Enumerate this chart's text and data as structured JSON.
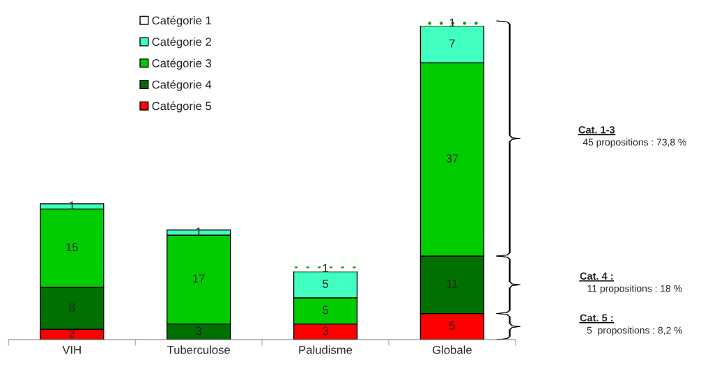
{
  "chart_data": {
    "type": "bar",
    "stacked": true,
    "categories": [
      "VIH",
      "Tuberculose",
      "Paludisme",
      "Globale"
    ],
    "series": [
      {
        "name": "Catégorie 5",
        "color": "#ff0000",
        "values": [
          2,
          null,
          3,
          5
        ]
      },
      {
        "name": "Catégorie 4",
        "color": "#007000",
        "values": [
          8,
          3,
          null,
          11
        ]
      },
      {
        "name": "Catégorie 3",
        "color": "#00cc00",
        "values": [
          15,
          17,
          5,
          37
        ]
      },
      {
        "name": "Catégorie 2",
        "color": "#40ffc0",
        "values": [
          1,
          1,
          5,
          7
        ]
      },
      {
        "name": "Catégorie 1",
        "color": "#ffffff",
        "values": [
          null,
          null,
          1,
          1
        ]
      }
    ],
    "ylim": [
      0,
      61.5
    ],
    "tick_labels": "x",
    "data_labels": true,
    "legend": "top",
    "grid": false,
    "annotations": [
      "Cat. 1-3",
      "45 propositions : 73,8 %",
      "Cat. 4 :",
      "11 propositions : 18 %",
      "Cat. 5 :",
      "5  propositions : 8,2 %"
    ]
  }
}
